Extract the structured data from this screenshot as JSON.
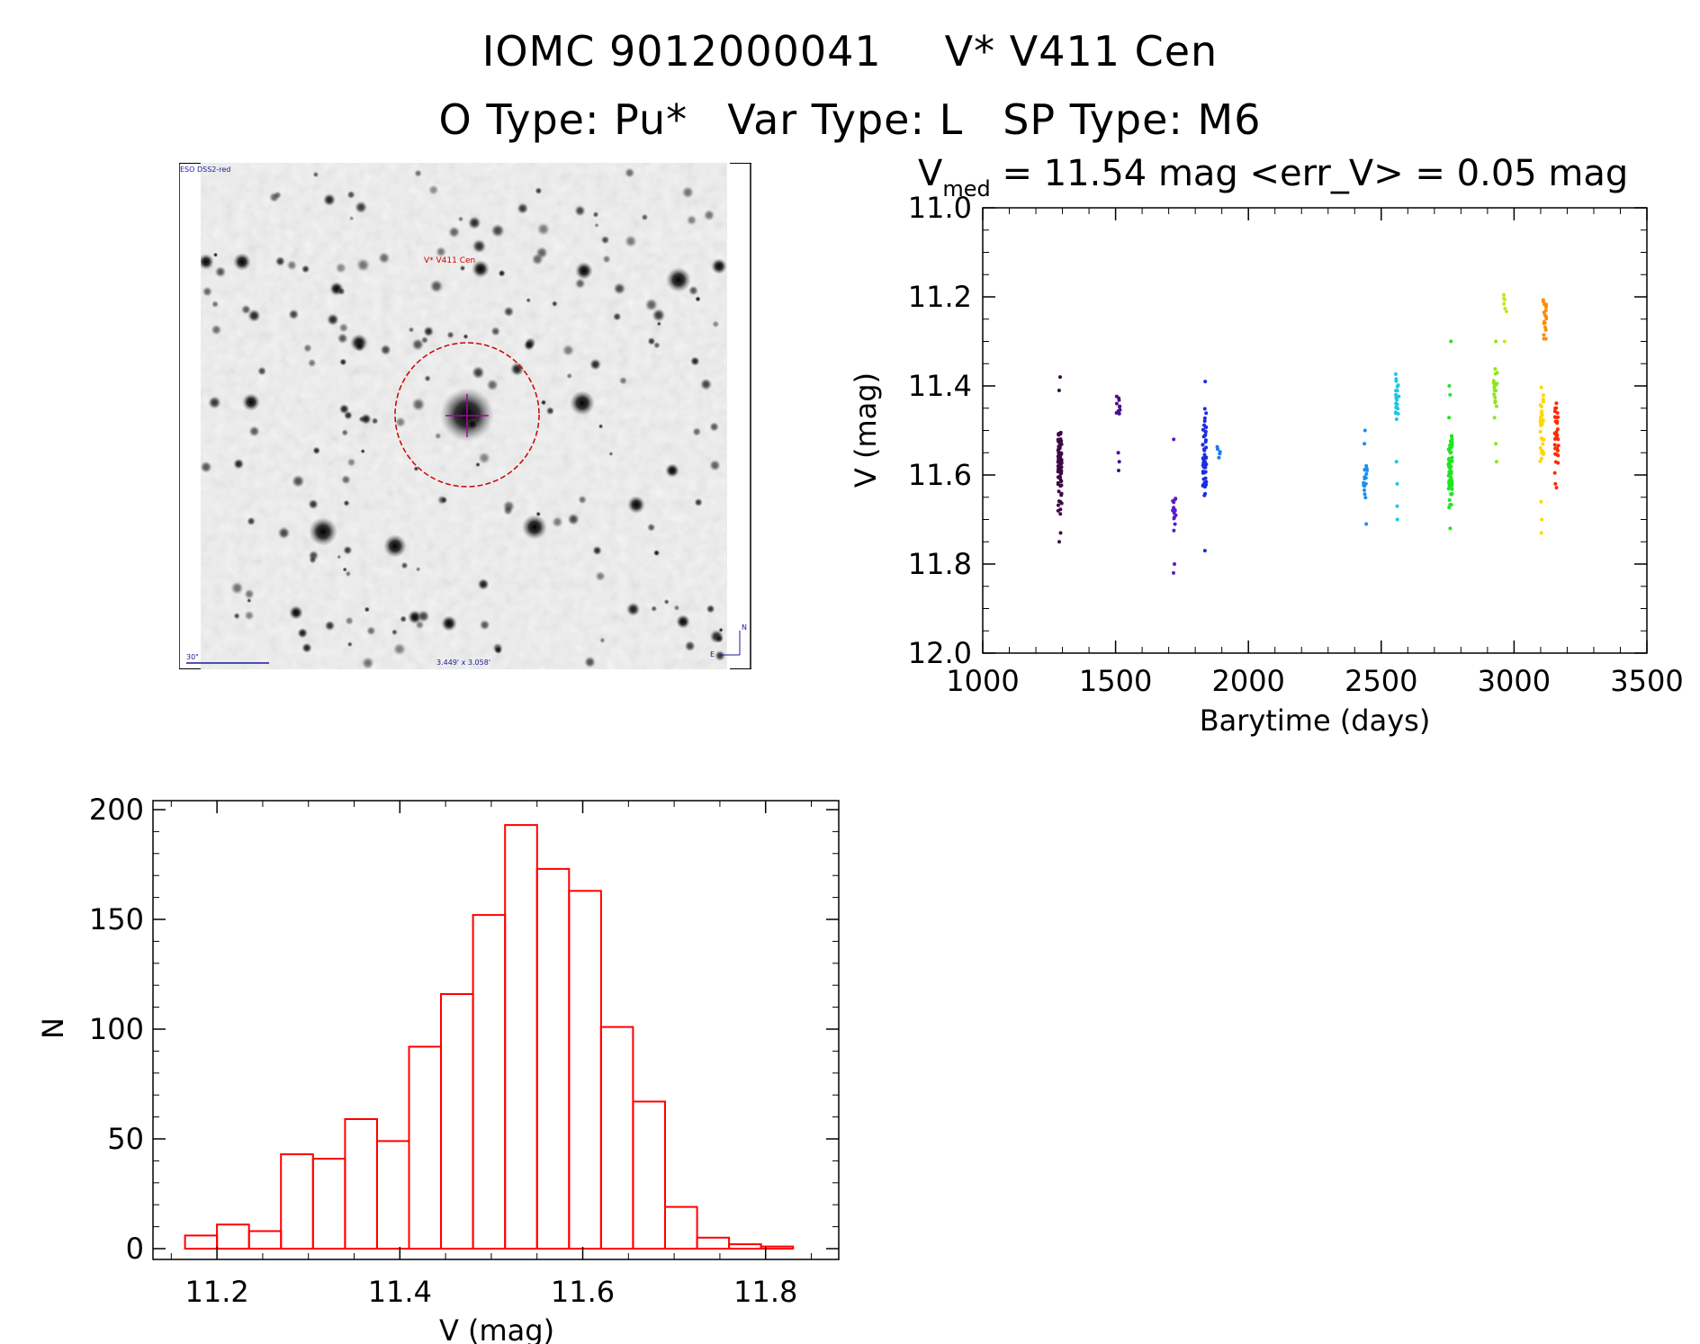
{
  "header": {
    "ids": [
      "IOMC 9012000041",
      "V* V411 Cen"
    ],
    "types": [
      "O Type: Pu*",
      "Var Type: L",
      "SP Type: M6"
    ]
  },
  "image_panel": {
    "survey_label": "ESO DSS2-red",
    "target_label": "V* V411 Cen",
    "scale_label": "30\"",
    "fov_label": "3.449' x 3.058'",
    "north_label": "N",
    "east_label": "E"
  },
  "colors": {
    "histogram": "#ff0000",
    "circle": "#cc0000",
    "crosshair": "#aa00aa",
    "labels_blue": "#1a1a99"
  },
  "chart_data": [
    {
      "type": "scatter",
      "title_prefix": "V",
      "title_sub": "med",
      "title_rest": " = 11.54 mag <err_V> = 0.05 mag",
      "xlabel": "Barytime (days)",
      "ylabel": "V (mag)",
      "xlim": [
        1000,
        3500
      ],
      "ylim": [
        12.0,
        11.0
      ],
      "y_inverted": true,
      "xticks": [
        "1000",
        "1500",
        "2000",
        "2500",
        "3000",
        "3500"
      ],
      "yticks": [
        "11.0",
        "11.2",
        "11.4",
        "11.6",
        "11.8",
        "12.0"
      ],
      "groups": [
        {
          "x": 1290,
          "ymin": 11.45,
          "ymax": 11.71,
          "ext": [
            11.38,
            11.41,
            11.73,
            11.75
          ],
          "color": "#3d0a45",
          "n": 90
        },
        {
          "x": 1510,
          "ymin": 11.4,
          "ymax": 11.49,
          "ext": [
            11.55,
            11.57,
            11.59
          ],
          "color": "#4c108c",
          "n": 10
        },
        {
          "x": 1720,
          "ymin": 11.62,
          "ymax": 11.74,
          "ext": [
            11.52,
            11.8,
            11.82
          ],
          "color": "#5a1cc8",
          "n": 16
        },
        {
          "x": 1835,
          "ymin": 11.42,
          "ymax": 11.69,
          "ext": [
            11.39,
            11.77
          ],
          "color": "#1a2ee6",
          "n": 55
        },
        {
          "x": 1888,
          "ymin": 11.52,
          "ymax": 11.58,
          "ext": [],
          "color": "#1f7ae6",
          "n": 5
        },
        {
          "x": 2440,
          "ymin": 11.56,
          "ymax": 11.66,
          "ext": [
            11.5,
            11.53,
            11.71
          ],
          "color": "#1f8ef0",
          "n": 18
        },
        {
          "x": 2560,
          "ymin": 11.34,
          "ymax": 11.5,
          "ext": [
            11.57,
            11.62,
            11.67,
            11.7
          ],
          "color": "#19c8e6",
          "n": 22
        },
        {
          "x": 2760,
          "ymin": 11.45,
          "ymax": 11.7,
          "ext": [
            11.3,
            11.4,
            11.42,
            11.72
          ],
          "color": "#1fe61f",
          "n": 70
        },
        {
          "x": 2930,
          "ymin": 11.33,
          "ymax": 11.48,
          "ext": [
            11.3,
            11.53,
            11.57
          ],
          "color": "#8fe619",
          "n": 20
        },
        {
          "x": 2965,
          "ymin": 11.18,
          "ymax": 11.24,
          "ext": [
            11.3
          ],
          "color": "#c8e619",
          "n": 6
        },
        {
          "x": 3105,
          "ymin": 11.37,
          "ymax": 11.63,
          "ext": [
            11.66,
            11.7,
            11.73
          ],
          "color": "#ffd700",
          "n": 30
        },
        {
          "x": 3115,
          "ymin": 11.17,
          "ymax": 11.33,
          "ext": [],
          "color": "#ff8c00",
          "n": 20
        },
        {
          "x": 3160,
          "ymin": 11.39,
          "ymax": 11.66,
          "ext": [],
          "color": "#ff2a00",
          "n": 35
        }
      ]
    },
    {
      "type": "bar",
      "subtype": "histogram",
      "xlabel": "V (mag)",
      "ylabel": "N",
      "xlim": [
        11.13,
        11.88
      ],
      "ylim": [
        0,
        200
      ],
      "xticks": [
        "11.2",
        "11.4",
        "11.6",
        "11.8"
      ],
      "yticks": [
        "0",
        "50",
        "100",
        "150",
        "200"
      ],
      "bin_edges": [
        11.165,
        11.2,
        11.235,
        11.27,
        11.305,
        11.34,
        11.375,
        11.41,
        11.445,
        11.48,
        11.515,
        11.55,
        11.585,
        11.62,
        11.655,
        11.69,
        11.725,
        11.76,
        11.795,
        11.83,
        11.865
      ],
      "values": [
        6,
        11,
        8,
        43,
        41,
        59,
        49,
        92,
        116,
        152,
        193,
        173,
        163,
        101,
        67,
        19,
        5,
        2,
        1,
        0
      ]
    }
  ]
}
